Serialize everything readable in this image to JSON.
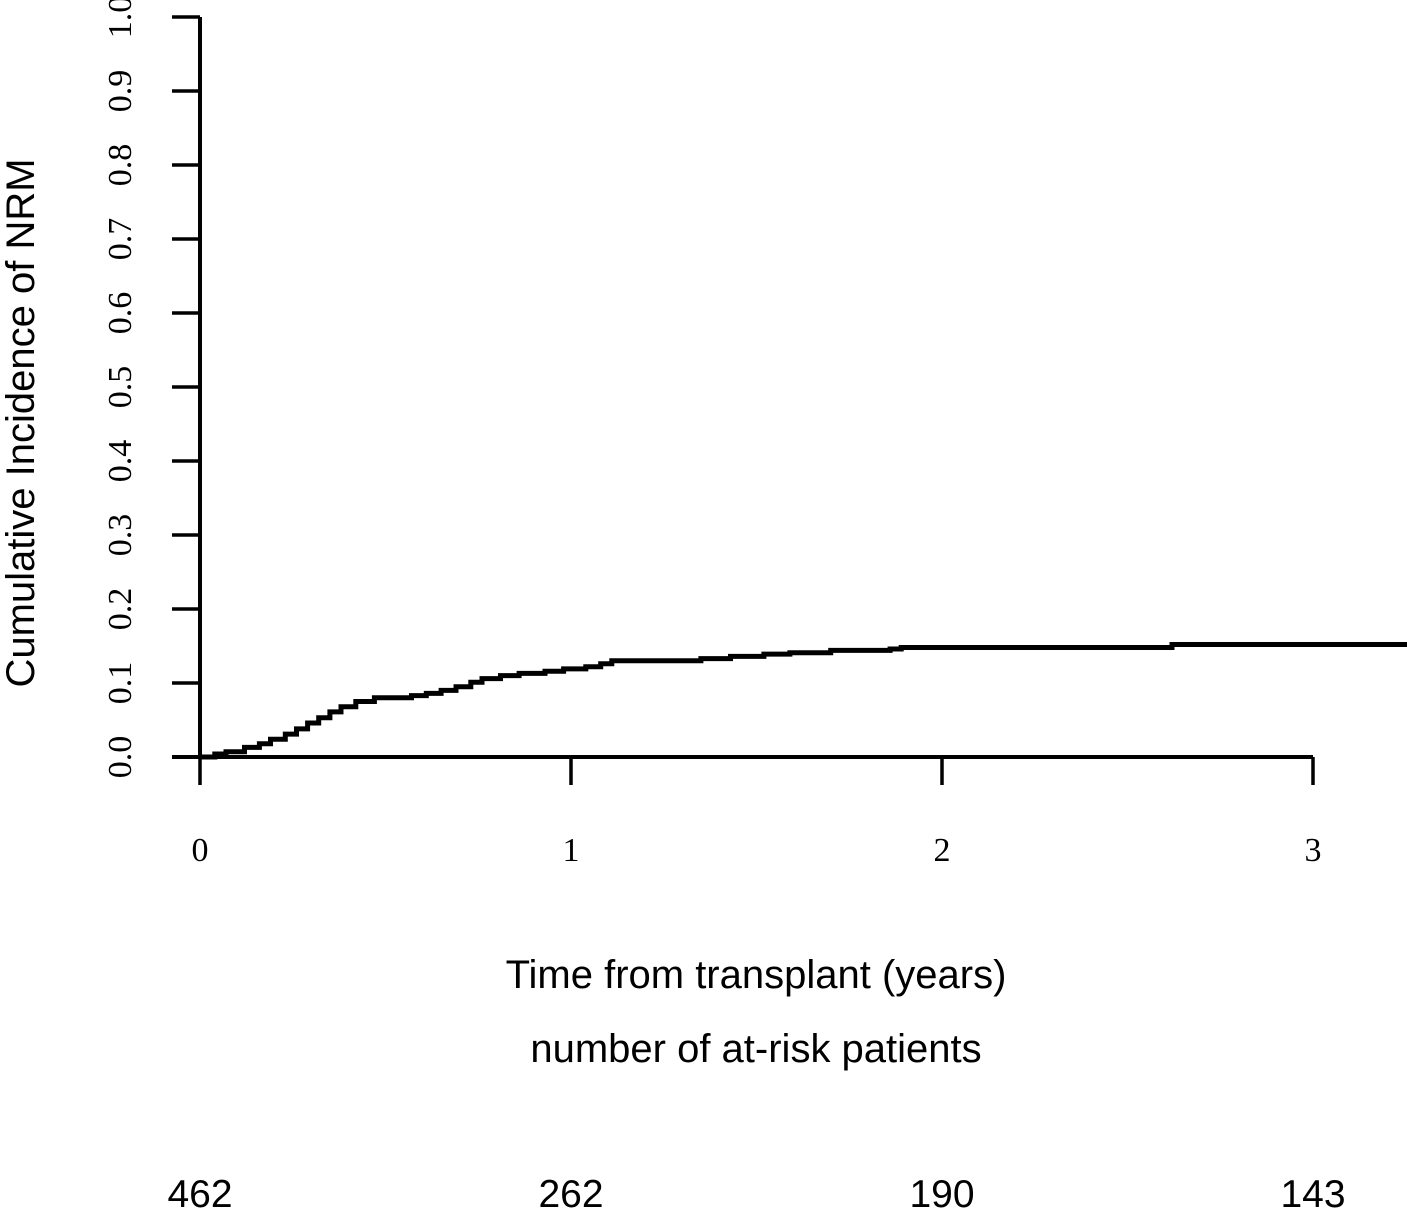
{
  "figure": {
    "background_color": "#ffffff",
    "ink_color": "#000000"
  },
  "chart_data": {
    "type": "line",
    "subtype": "step-function-cumulative-incidence",
    "title": "",
    "xlabel": "Time from transplant (years)",
    "ylabel": "Cumulative Incidence of NRM",
    "xlim": [
      0,
      3.25
    ],
    "ylim": [
      0.0,
      1.0
    ],
    "grid": false,
    "legend": null,
    "x_ticks": [
      0,
      1,
      2,
      3
    ],
    "x_tick_labels": [
      "0",
      "1",
      "2",
      "3"
    ],
    "y_ticks": [
      0.0,
      0.1,
      0.2,
      0.3,
      0.4,
      0.5,
      0.6,
      0.7,
      0.8,
      0.9,
      1.0
    ],
    "y_tick_labels": [
      "0.0",
      "0.1",
      "0.2",
      "0.3",
      "0.4",
      "0.5",
      "0.6",
      "0.7",
      "0.8",
      "0.9",
      "1.0"
    ],
    "series": [
      {
        "name": "Cumulative incidence of NRM",
        "step": true,
        "color": "#000000",
        "x_end": 3.25,
        "points": [
          [
            0.0,
            0.0
          ],
          [
            0.04,
            0.004
          ],
          [
            0.07,
            0.007
          ],
          [
            0.12,
            0.013
          ],
          [
            0.16,
            0.018
          ],
          [
            0.19,
            0.024
          ],
          [
            0.23,
            0.031
          ],
          [
            0.26,
            0.038
          ],
          [
            0.29,
            0.046
          ],
          [
            0.32,
            0.053
          ],
          [
            0.35,
            0.061
          ],
          [
            0.38,
            0.068
          ],
          [
            0.42,
            0.075
          ],
          [
            0.47,
            0.08
          ],
          [
            0.57,
            0.083
          ],
          [
            0.61,
            0.086
          ],
          [
            0.65,
            0.09
          ],
          [
            0.69,
            0.095
          ],
          [
            0.73,
            0.101
          ],
          [
            0.76,
            0.106
          ],
          [
            0.81,
            0.11
          ],
          [
            0.86,
            0.113
          ],
          [
            0.93,
            0.116
          ],
          [
            0.98,
            0.119
          ],
          [
            1.04,
            0.122
          ],
          [
            1.08,
            0.126
          ],
          [
            1.11,
            0.13
          ],
          [
            1.35,
            0.133
          ],
          [
            1.43,
            0.136
          ],
          [
            1.52,
            0.139
          ],
          [
            1.59,
            0.141
          ],
          [
            1.7,
            0.144
          ],
          [
            1.86,
            0.146
          ],
          [
            1.89,
            0.148
          ],
          [
            2.62,
            0.152
          ]
        ]
      }
    ],
    "at_risk": {
      "label": "number of at-risk patients",
      "times": [
        0,
        1,
        2,
        3
      ],
      "counts": [
        "462",
        "262",
        "190",
        "143"
      ]
    }
  }
}
